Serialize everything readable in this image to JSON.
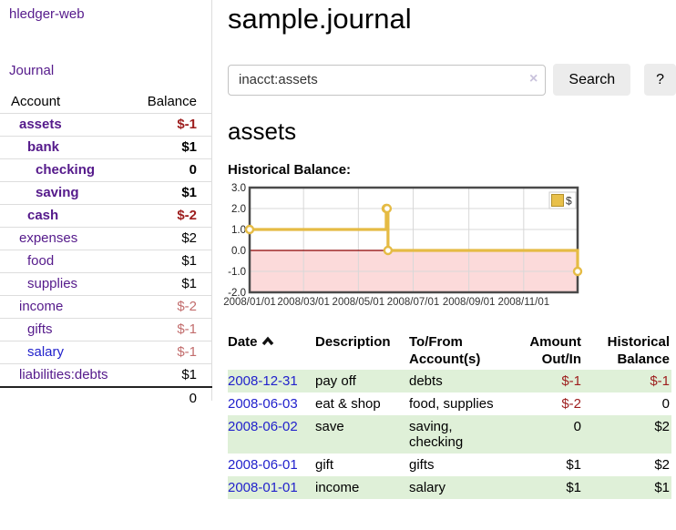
{
  "colors": {
    "link_purple": "#551a8b",
    "link_blue": "#2222cc",
    "negative_strong": "#9d1d1d",
    "negative_pale": "#c26d6d",
    "row_stripe_green": "#dff0d8",
    "series_gold": "#e5bb44",
    "negative_band_pink": "#fcdada",
    "zero_line_maroon": "#8b0000"
  },
  "sidebar": {
    "brand": "hledger-web",
    "journal_link": "Journal",
    "accounts": {
      "headers": {
        "account": "Account",
        "balance": "Balance"
      },
      "rows": [
        {
          "name": "assets",
          "balance": "$-1",
          "depth": 1,
          "bold": true,
          "neg": "strong"
        },
        {
          "name": "bank",
          "balance": "$1",
          "depth": 2,
          "bold": true,
          "neg": "none"
        },
        {
          "name": "checking",
          "balance": "0",
          "depth": 3,
          "bold": true,
          "neg": "none"
        },
        {
          "name": "saving",
          "balance": "$1",
          "depth": 3,
          "bold": true,
          "neg": "none"
        },
        {
          "name": "cash",
          "balance": "$-2",
          "depth": 2,
          "bold": true,
          "neg": "strong"
        },
        {
          "name": "expenses",
          "balance": "$2",
          "depth": 1,
          "bold": false,
          "neg": "none"
        },
        {
          "name": "food",
          "balance": "$1",
          "depth": 2,
          "bold": false,
          "neg": "none"
        },
        {
          "name": "supplies",
          "balance": "$1",
          "depth": 2,
          "bold": false,
          "neg": "none"
        },
        {
          "name": "income",
          "balance": "$-2",
          "depth": 1,
          "bold": false,
          "neg": "pale"
        },
        {
          "name": "gifts",
          "balance": "$-1",
          "depth": 2,
          "bold": false,
          "neg": "pale"
        },
        {
          "name": "salary",
          "balance": "$-1",
          "depth": 2,
          "bold": false,
          "neg": "pale",
          "blue": true
        },
        {
          "name": "liabilities:debts",
          "balance": "$1",
          "depth": 1,
          "bold": false,
          "neg": "none"
        }
      ],
      "total": "0"
    }
  },
  "header": {
    "title": "sample.journal"
  },
  "search": {
    "value": "inacct:assets",
    "clear_icon": "×",
    "search_button": "Search",
    "help_button": "?"
  },
  "main": {
    "account_heading": "assets",
    "chart_label": "Historical Balance:"
  },
  "chart_data": {
    "type": "line",
    "step": true,
    "title": "Historical Balance:",
    "x_start": "2008-01-01",
    "x_end": "2008-12-31",
    "ylim": [
      -2,
      3
    ],
    "yticks": [
      3,
      2,
      1,
      0,
      -1,
      -2
    ],
    "ytick_labels": [
      "3.0",
      "2.0",
      "1.0",
      "0.0",
      "-1.0",
      "-2.0"
    ],
    "xticks": [
      "2008-01-01",
      "2008-03-01",
      "2008-05-01",
      "2008-07-01",
      "2008-09-01",
      "2008-11-01"
    ],
    "xtick_labels": [
      "2008/01/01",
      "2008/03/01",
      "2008/05/01",
      "2008/07/01",
      "2008/09/01",
      "2008/11/01"
    ],
    "series": [
      {
        "name": "$",
        "color": "#e5bb44",
        "marker_fill": "#ffffff",
        "points": [
          {
            "x": "2008-01-01",
            "y": 1
          },
          {
            "x": "2008-06-01",
            "y": 2
          },
          {
            "x": "2008-06-02",
            "y": 2
          },
          {
            "x": "2008-06-03",
            "y": 0
          },
          {
            "x": "2008-12-31",
            "y": -1
          }
        ]
      }
    ],
    "legend": {
      "labels": [
        "$"
      ],
      "position": "top-right",
      "swatch_fill": "#e8c04a",
      "swatch_border": "#b2902c"
    },
    "grid": true,
    "negative_band_color": "#fcdada",
    "zero_line_color": "#8b0000"
  },
  "register": {
    "headers": {
      "date": "Date",
      "sort_icon": "chevron-up",
      "description": "Description",
      "accounts": "To/From Account(s)",
      "amount": "Amount Out/In",
      "balance": "Historical Balance"
    },
    "rows": [
      {
        "date": "2008-12-31",
        "description": "pay off",
        "accounts": "debts",
        "amount": "$-1",
        "balance": "$-1",
        "amount_neg": true,
        "balance_neg": true
      },
      {
        "date": "2008-06-03",
        "description": "eat & shop",
        "accounts": "food, supplies",
        "amount": "$-2",
        "balance": "0",
        "amount_neg": true,
        "balance_neg": false
      },
      {
        "date": "2008-06-02",
        "description": "save",
        "accounts": "saving, checking",
        "amount": "0",
        "balance": "$2",
        "amount_neg": false,
        "balance_neg": false
      },
      {
        "date": "2008-06-01",
        "description": "gift",
        "accounts": "gifts",
        "amount": "$1",
        "balance": "$2",
        "amount_neg": false,
        "balance_neg": false
      },
      {
        "date": "2008-01-01",
        "description": "income",
        "accounts": "salary",
        "amount": "$1",
        "balance": "$1",
        "amount_neg": false,
        "balance_neg": false
      }
    ]
  }
}
